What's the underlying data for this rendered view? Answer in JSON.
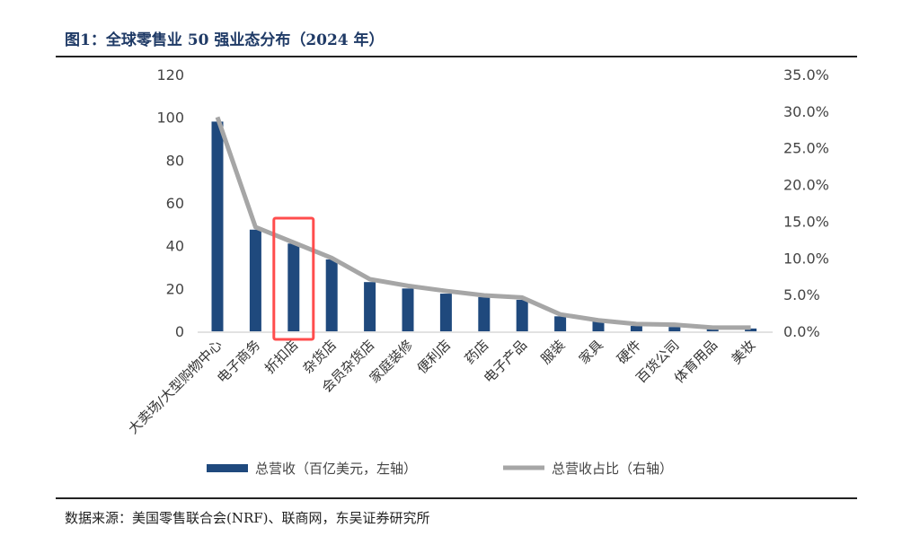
{
  "title": "图1：全球零售业 50 强业态分布（2024 年）",
  "source": "数据来源：美国零售联合会(NRF)、联商网，东吴证券研究所",
  "chart_data": {
    "type": "bar+line",
    "categories": [
      "大卖场/大型购物中心",
      "电子商务",
      "折扣店",
      "杂货店",
      "会员杂货店",
      "家庭装修",
      "便利店",
      "药店",
      "电子产品",
      "服装",
      "家具",
      "硬件",
      "百货公司",
      "体育用品",
      "美妆"
    ],
    "series": [
      {
        "name": "总营收（百亿美元，左轴）",
        "type": "bar",
        "axis": "left",
        "color": "#1f497d",
        "values": [
          98,
          47.5,
          41,
          33.6,
          23,
          20,
          17.6,
          16,
          14.7,
          7,
          4.6,
          2.5,
          2,
          1,
          1.3
        ]
      },
      {
        "name": "总营收占比（右轴）",
        "type": "line",
        "axis": "right",
        "color": "#a6a6a6",
        "values": [
          29.2,
          14.2,
          12.1,
          10,
          7.1,
          6.2,
          5.5,
          4.9,
          4.6,
          2.3,
          1.5,
          1,
          0.9,
          0.5,
          0.5
        ]
      }
    ],
    "left_axis": {
      "range": [
        0,
        120
      ],
      "ticks": [
        "0",
        "20",
        "40",
        "60",
        "80",
        "100",
        "120"
      ]
    },
    "right_axis": {
      "range": [
        0,
        35
      ],
      "ticks": [
        "0.0%",
        "5.0%",
        "10.0%",
        "15.0%",
        "20.0%",
        "25.0%",
        "30.0%",
        "35.0%"
      ]
    },
    "highlight": {
      "category": "折扣店",
      "color": "#ff4d4d"
    },
    "grid": false,
    "legend": "bottom"
  }
}
